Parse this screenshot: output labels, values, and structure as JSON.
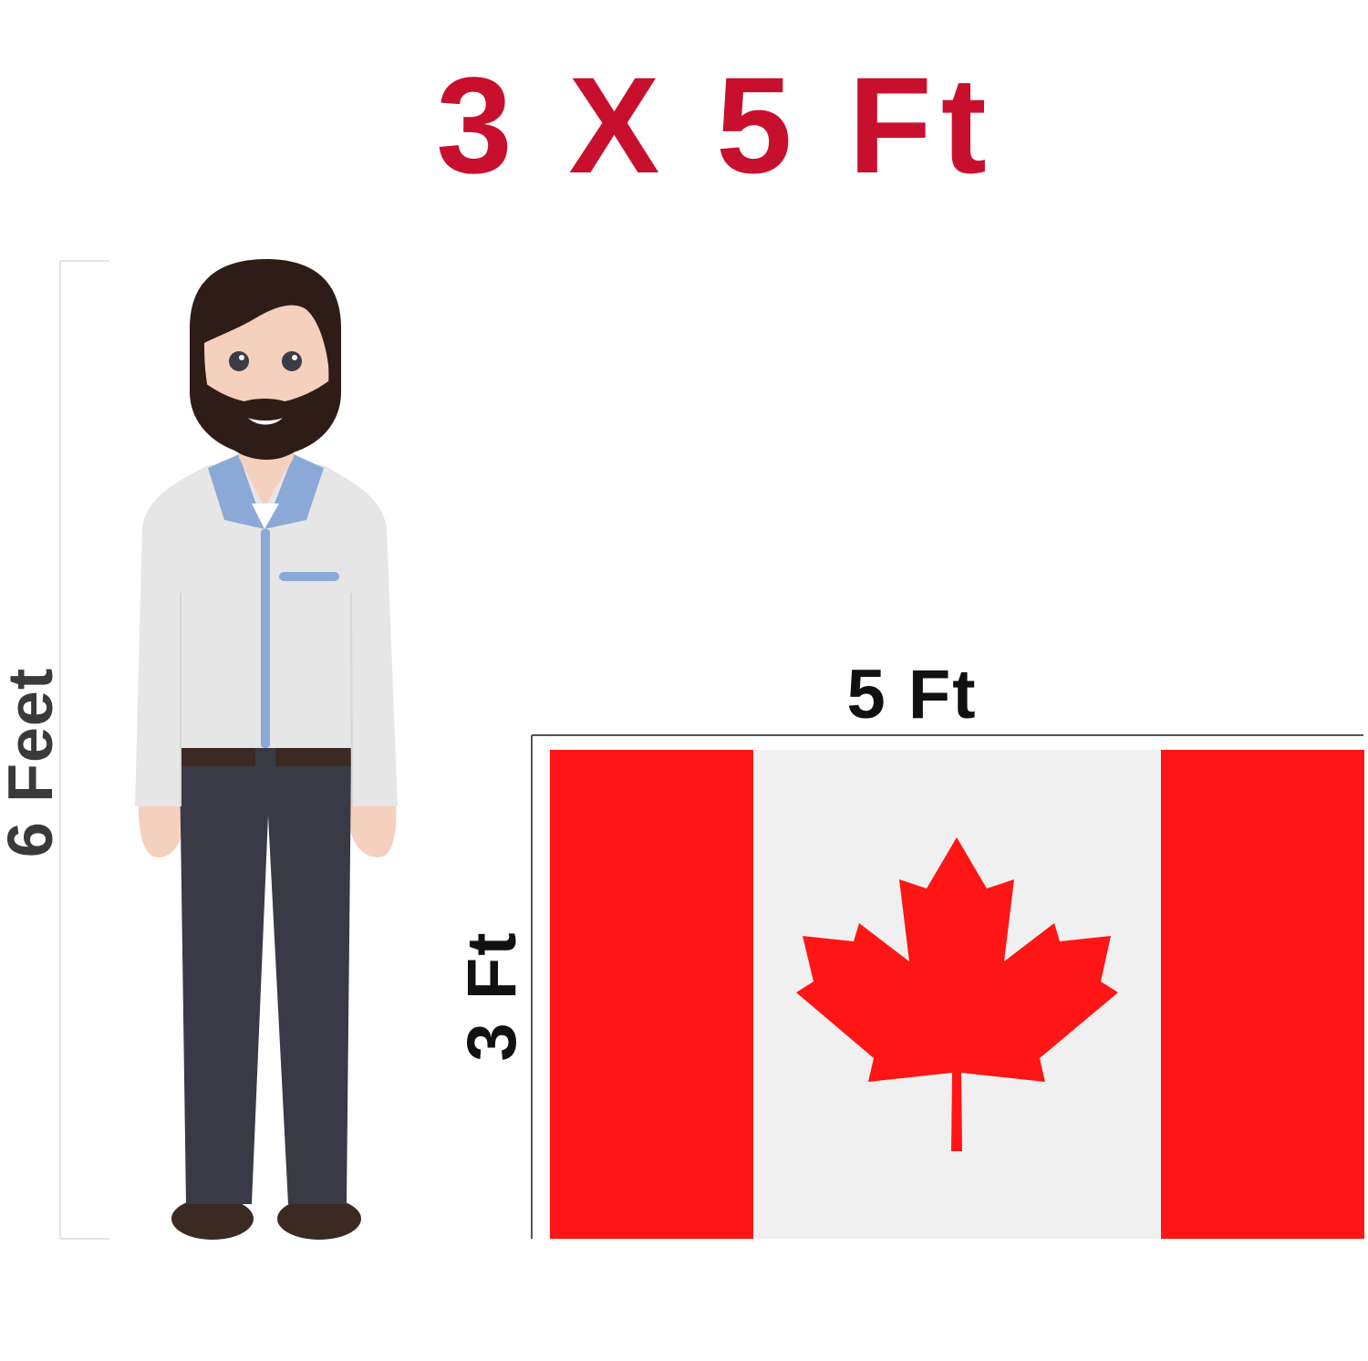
{
  "title": {
    "text": "3 X 5 Ft",
    "color": "#c8102e"
  },
  "person": {
    "height_label": "6 Feet",
    "skin_color": "#f5d0bf",
    "hair_color": "#2e1d17",
    "shirt_color": "#e6e6e6",
    "collar_color": "#8aa9d6",
    "pants_color": "#3a3a46",
    "shoe_color": "#3a2a22"
  },
  "flag": {
    "country": "Canada",
    "width_label": "5 Ft",
    "height_label": "3 Ft",
    "red": "#ff1515",
    "white": "#f0f0f0"
  }
}
